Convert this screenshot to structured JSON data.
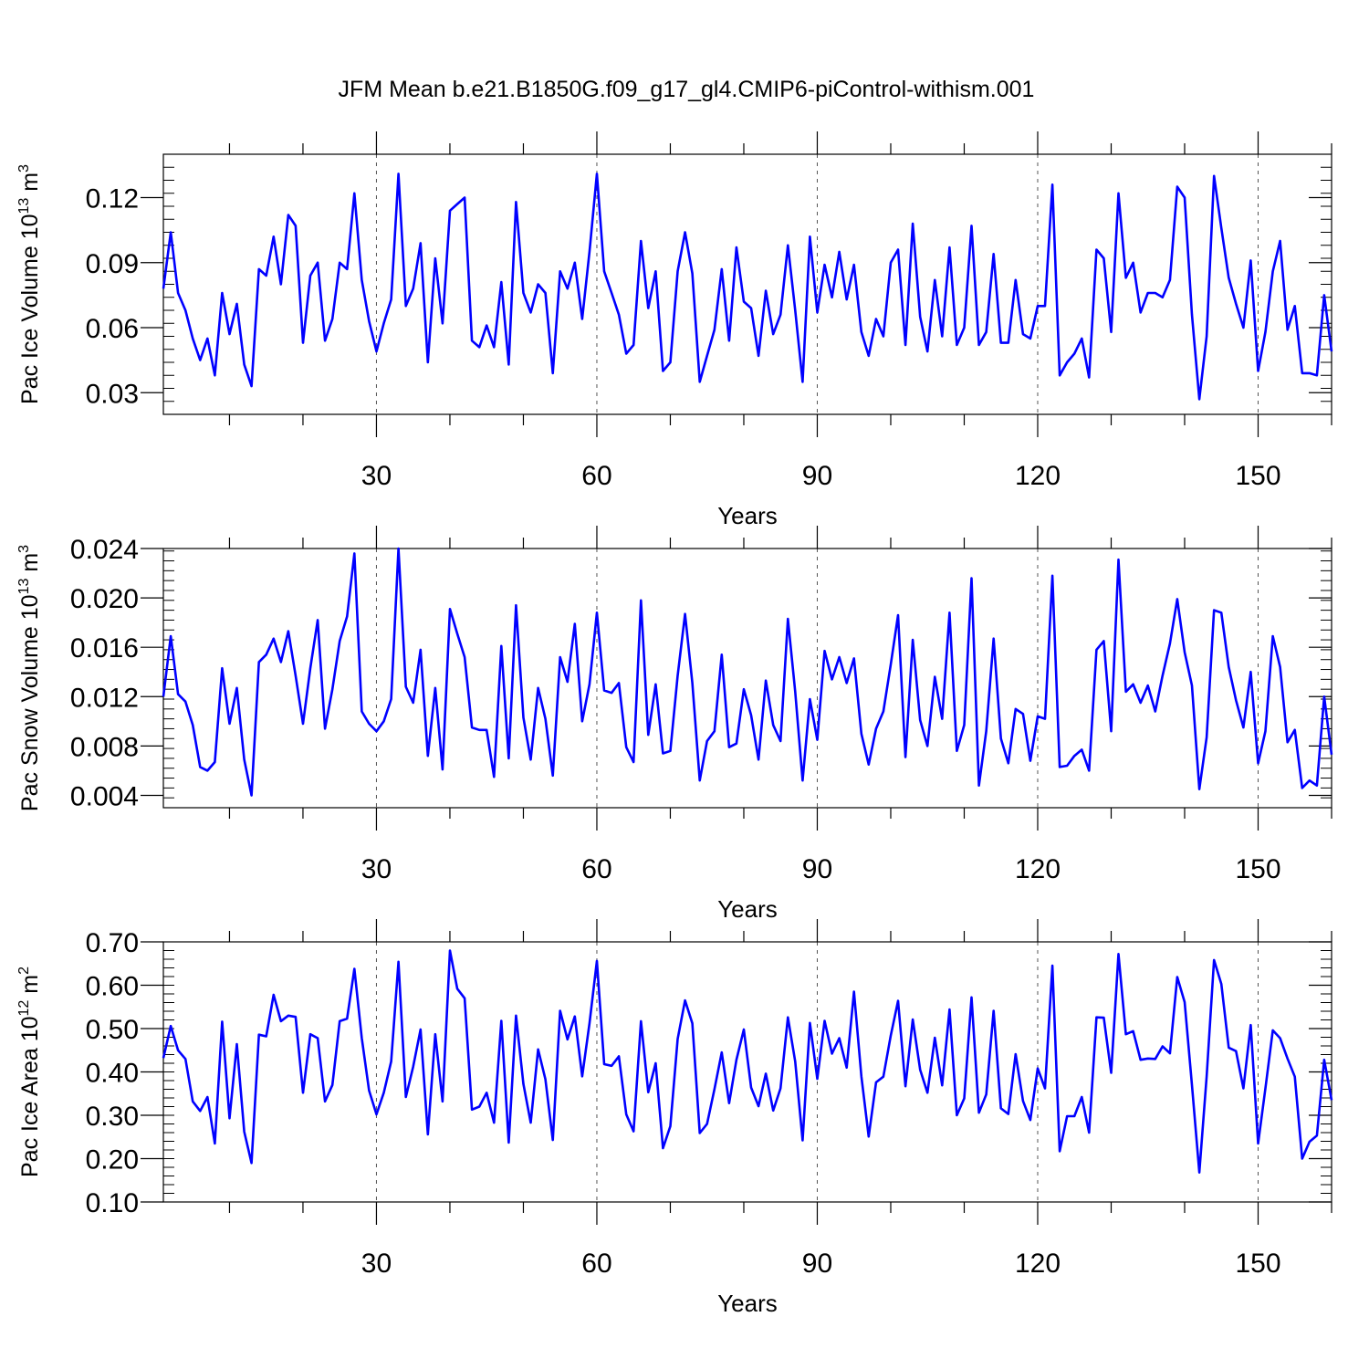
{
  "title": "JFM Mean b.e21.B1850G.f09_g17_gl4.CMIP6-piControl-withism.001",
  "line_color": "#0000ff",
  "chart_data": [
    {
      "type": "line",
      "ylabel_main": "Pac Ice Volume 10",
      "ylabel_exp1": "13",
      "ylabel_unit": " m",
      "ylabel_exp2": "3",
      "xlabel": "Years",
      "xlim": [
        1,
        160
      ],
      "ylim": [
        0.02,
        0.14
      ],
      "xticks": [
        30,
        60,
        90,
        120,
        150
      ],
      "xtick_labels": [
        "30",
        "60",
        "90",
        "120",
        "150"
      ],
      "yticks": [
        0.03,
        0.06,
        0.09,
        0.12
      ],
      "ytick_labels": [
        "0.03",
        "0.06",
        "0.09",
        "0.12"
      ],
      "y_minor_step": 0.006,
      "grid": "dashed vertical lines at x ticks",
      "x": "years 1-160",
      "values": [
        0.078,
        0.104,
        0.076,
        0.068,
        0.055,
        0.045,
        0.055,
        0.038,
        0.076,
        0.057,
        0.071,
        0.043,
        0.033,
        0.087,
        0.084,
        0.102,
        0.08,
        0.112,
        0.107,
        0.053,
        0.084,
        0.09,
        0.054,
        0.064,
        0.09,
        0.087,
        0.122,
        0.082,
        0.063,
        0.049,
        0.062,
        0.073,
        0.131,
        0.07,
        0.078,
        0.099,
        0.044,
        0.092,
        0.062,
        0.114,
        0.117,
        0.12,
        0.054,
        0.051,
        0.061,
        0.051,
        0.081,
        0.043,
        0.118,
        0.076,
        0.067,
        0.08,
        0.076,
        0.039,
        0.086,
        0.078,
        0.09,
        0.064,
        0.095,
        0.131,
        0.086,
        0.076,
        0.066,
        0.048,
        0.052,
        0.1,
        0.069,
        0.086,
        0.04,
        0.044,
        0.086,
        0.104,
        0.085,
        0.035,
        0.047,
        0.059,
        0.087,
        0.054,
        0.097,
        0.072,
        0.069,
        0.047,
        0.077,
        0.057,
        0.066,
        0.098,
        0.068,
        0.035,
        0.102,
        0.067,
        0.089,
        0.074,
        0.095,
        0.073,
        0.089,
        0.058,
        0.047,
        0.064,
        0.056,
        0.09,
        0.096,
        0.052,
        0.108,
        0.065,
        0.049,
        0.082,
        0.056,
        0.097,
        0.052,
        0.06,
        0.107,
        0.052,
        0.058,
        0.094,
        0.053,
        0.053,
        0.082,
        0.057,
        0.055,
        0.07,
        0.07,
        0.126,
        0.038,
        0.044,
        0.048,
        0.055,
        0.037,
        0.096,
        0.092,
        0.058,
        0.122,
        0.083,
        0.09,
        0.067,
        0.076,
        0.076,
        0.074,
        0.082,
        0.125,
        0.12,
        0.066,
        0.027,
        0.056,
        0.13,
        0.106,
        0.083,
        0.071,
        0.06,
        0.091,
        0.04,
        0.058,
        0.086,
        0.1,
        0.059,
        0.07,
        0.039,
        0.039,
        0.038,
        0.075,
        0.049
      ]
    },
    {
      "type": "line",
      "ylabel_main": "Pac Snow Volume 10",
      "ylabel_exp1": "13",
      "ylabel_unit": " m",
      "ylabel_exp2": "3",
      "xlabel": "Years",
      "xlim": [
        1,
        160
      ],
      "ylim": [
        0.003,
        0.024
      ],
      "xticks": [
        30,
        60,
        90,
        120,
        150
      ],
      "xtick_labels": [
        "30",
        "60",
        "90",
        "120",
        "150"
      ],
      "yticks": [
        0.004,
        0.008,
        0.012,
        0.016,
        0.02,
        0.024
      ],
      "ytick_labels": [
        "0.004",
        "0.008",
        "0.012",
        "0.016",
        "0.020",
        "0.024"
      ],
      "y_minor_step": 0.0008,
      "grid": "dashed vertical lines at x ticks",
      "x": "years 1-160",
      "values": [
        0.012,
        0.0169,
        0.0122,
        0.0116,
        0.0097,
        0.0063,
        0.006,
        0.0067,
        0.0143,
        0.0098,
        0.0127,
        0.0069,
        0.004,
        0.0148,
        0.0154,
        0.0167,
        0.0148,
        0.0173,
        0.0137,
        0.0098,
        0.0143,
        0.0182,
        0.0094,
        0.0126,
        0.0165,
        0.0185,
        0.0236,
        0.0108,
        0.0098,
        0.0092,
        0.01,
        0.0118,
        0.024,
        0.0128,
        0.0115,
        0.0158,
        0.0072,
        0.0127,
        0.0061,
        0.0191,
        0.0171,
        0.0152,
        0.0095,
        0.0093,
        0.0093,
        0.0055,
        0.0161,
        0.007,
        0.0194,
        0.0103,
        0.0069,
        0.0127,
        0.0102,
        0.0056,
        0.0152,
        0.0132,
        0.0179,
        0.01,
        0.013,
        0.0188,
        0.0125,
        0.0123,
        0.0131,
        0.0079,
        0.0067,
        0.0198,
        0.0089,
        0.013,
        0.0074,
        0.0076,
        0.0137,
        0.0187,
        0.0131,
        0.0052,
        0.0084,
        0.0092,
        0.0154,
        0.0079,
        0.0082,
        0.0126,
        0.0105,
        0.0069,
        0.0133,
        0.0097,
        0.0084,
        0.0183,
        0.0124,
        0.0052,
        0.0118,
        0.0085,
        0.0157,
        0.0134,
        0.0152,
        0.0131,
        0.0151,
        0.009,
        0.0065,
        0.0094,
        0.0108,
        0.0146,
        0.0186,
        0.0071,
        0.0166,
        0.0101,
        0.008,
        0.0136,
        0.0102,
        0.0188,
        0.0076,
        0.0097,
        0.0216,
        0.0048,
        0.0092,
        0.0167,
        0.0086,
        0.0066,
        0.011,
        0.0106,
        0.0068,
        0.0104,
        0.0102,
        0.0218,
        0.0063,
        0.0064,
        0.0072,
        0.0077,
        0.006,
        0.0158,
        0.0165,
        0.0092,
        0.0231,
        0.0124,
        0.013,
        0.0115,
        0.0129,
        0.0108,
        0.0137,
        0.0163,
        0.0199,
        0.0156,
        0.0129,
        0.0045,
        0.0087,
        0.019,
        0.0188,
        0.0144,
        0.0117,
        0.0095,
        0.014,
        0.0066,
        0.0092,
        0.0169,
        0.0144,
        0.0083,
        0.0093,
        0.0046,
        0.0052,
        0.0048,
        0.012,
        0.0073
      ]
    },
    {
      "type": "line",
      "ylabel_main": "Pac Ice Area 10",
      "ylabel_exp1": "12",
      "ylabel_unit": " m",
      "ylabel_exp2": "2",
      "xlabel": "Years",
      "xlim": [
        1,
        160
      ],
      "ylim": [
        0.1,
        0.7
      ],
      "xticks": [
        30,
        60,
        90,
        120,
        150
      ],
      "xtick_labels": [
        "30",
        "60",
        "90",
        "120",
        "150"
      ],
      "yticks": [
        0.1,
        0.2,
        0.3,
        0.4,
        0.5,
        0.6,
        0.7
      ],
      "ytick_labels": [
        "0.10",
        "0.20",
        "0.30",
        "0.40",
        "0.50",
        "0.60",
        "0.70"
      ],
      "y_minor_step": 0.02,
      "grid": "dashed vertical lines at x ticks",
      "x": "years 1-160",
      "values": [
        0.432,
        0.506,
        0.45,
        0.43,
        0.332,
        0.31,
        0.342,
        0.235,
        0.516,
        0.293,
        0.464,
        0.262,
        0.19,
        0.486,
        0.482,
        0.578,
        0.517,
        0.53,
        0.527,
        0.352,
        0.487,
        0.478,
        0.332,
        0.37,
        0.517,
        0.523,
        0.638,
        0.478,
        0.357,
        0.302,
        0.352,
        0.424,
        0.654,
        0.342,
        0.412,
        0.498,
        0.256,
        0.487,
        0.332,
        0.68,
        0.592,
        0.57,
        0.313,
        0.32,
        0.352,
        0.283,
        0.518,
        0.237,
        0.53,
        0.372,
        0.283,
        0.452,
        0.383,
        0.243,
        0.541,
        0.475,
        0.528,
        0.39,
        0.512,
        0.656,
        0.418,
        0.414,
        0.436,
        0.302,
        0.263,
        0.517,
        0.353,
        0.42,
        0.224,
        0.275,
        0.476,
        0.565,
        0.512,
        0.259,
        0.28,
        0.36,
        0.445,
        0.328,
        0.428,
        0.498,
        0.364,
        0.321,
        0.396,
        0.311,
        0.362,
        0.526,
        0.424,
        0.242,
        0.513,
        0.384,
        0.518,
        0.442,
        0.478,
        0.41,
        0.585,
        0.39,
        0.251,
        0.376,
        0.389,
        0.484,
        0.564,
        0.367,
        0.521,
        0.405,
        0.352,
        0.479,
        0.369,
        0.544,
        0.3,
        0.339,
        0.572,
        0.306,
        0.348,
        0.541,
        0.316,
        0.303,
        0.441,
        0.333,
        0.289,
        0.408,
        0.362,
        0.645,
        0.217,
        0.298,
        0.298,
        0.342,
        0.26,
        0.526,
        0.525,
        0.398,
        0.672,
        0.487,
        0.494,
        0.428,
        0.431,
        0.43,
        0.459,
        0.443,
        0.619,
        0.561,
        0.37,
        0.168,
        0.389,
        0.658,
        0.603,
        0.456,
        0.448,
        0.362,
        0.508,
        0.235,
        0.362,
        0.496,
        0.478,
        0.431,
        0.389,
        0.2,
        0.239,
        0.253,
        0.428,
        0.335
      ]
    }
  ]
}
